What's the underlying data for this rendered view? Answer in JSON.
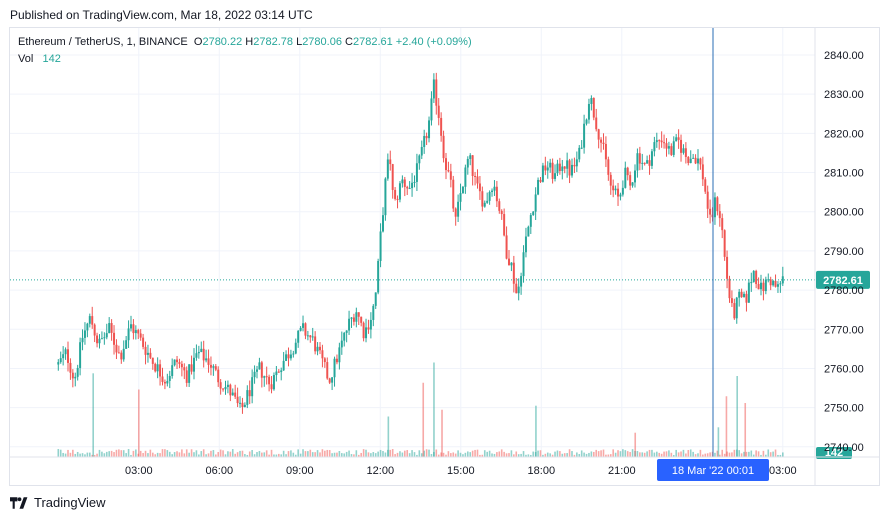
{
  "header": {
    "published": "Published on TradingView.com, Mar 18, 2022 03:14 UTC"
  },
  "legend": {
    "symbol": "Ethereum / TetherUS, 1, BINANCE",
    "o_label": "O",
    "o_value": "2780.22",
    "h_label": "H",
    "h_value": "2782.78",
    "l_label": "L",
    "l_value": "2780.06",
    "c_label": "C",
    "c_value": "2782.61",
    "change": "+2.40 (+0.09%)",
    "vol_label": "Vol",
    "vol_value": "142"
  },
  "colors": {
    "up": "#26a69a",
    "down": "#ef5350",
    "crosshair": "#2962ff",
    "grid": "#f0f3fa",
    "axis_text": "#131722"
  },
  "footer": {
    "brand": "TradingView",
    "logo_icon": "tradingview-logo-icon"
  },
  "chart_data": {
    "type": "candlestick",
    "symbol": "Ethereum / TetherUS",
    "interval": "1",
    "exchange": "BINANCE",
    "y_ticks": [
      "2740.00",
      "2750.00",
      "2760.00",
      "2770.00",
      "2780.00",
      "2790.00",
      "2800.00",
      "2810.00",
      "2820.00",
      "2830.00",
      "2840.00"
    ],
    "x_ticks": [
      "03:00",
      "06:00",
      "09:00",
      "12:00",
      "15:00",
      "18:00",
      "21:00",
      "03:00"
    ],
    "ylim": [
      2736,
      2846
    ],
    "last_price": "2782.61",
    "last_volume": "142",
    "crosshair_label": "18 Mar '22   00:01",
    "grid": true,
    "price_path": [
      [
        0.0,
        2761
      ],
      [
        0.3,
        2764
      ],
      [
        0.6,
        2757
      ],
      [
        0.9,
        2768
      ],
      [
        1.2,
        2773
      ],
      [
        1.5,
        2766
      ],
      [
        1.9,
        2770
      ],
      [
        2.3,
        2763
      ],
      [
        2.7,
        2771
      ],
      [
        3.0,
        2768
      ],
      [
        3.5,
        2762
      ],
      [
        4.0,
        2757
      ],
      [
        4.4,
        2762
      ],
      [
        4.8,
        2758
      ],
      [
        5.2,
        2764
      ],
      [
        5.6,
        2762
      ],
      [
        6.0,
        2757
      ],
      [
        6.4,
        2754
      ],
      [
        6.8,
        2749
      ],
      [
        7.1,
        2754
      ],
      [
        7.5,
        2760
      ],
      [
        7.9,
        2756
      ],
      [
        8.3,
        2761
      ],
      [
        8.7,
        2765
      ],
      [
        9.1,
        2770
      ],
      [
        9.5,
        2767
      ],
      [
        9.8,
        2762
      ],
      [
        10.1,
        2757
      ],
      [
        10.4,
        2763
      ],
      [
        10.8,
        2771
      ],
      [
        11.1,
        2775
      ],
      [
        11.4,
        2769
      ],
      [
        11.7,
        2774
      ],
      [
        11.85,
        2780
      ],
      [
        12.0,
        2793
      ],
      [
        12.2,
        2808
      ],
      [
        12.35,
        2815
      ],
      [
        12.5,
        2801
      ],
      [
        12.8,
        2808
      ],
      [
        13.1,
        2806
      ],
      [
        13.4,
        2811
      ],
      [
        13.8,
        2822
      ],
      [
        14.0,
        2832
      ],
      [
        14.2,
        2824
      ],
      [
        14.4,
        2813
      ],
      [
        14.6,
        2808
      ],
      [
        14.8,
        2797
      ],
      [
        15.0,
        2805
      ],
      [
        15.3,
        2814
      ],
      [
        15.6,
        2806
      ],
      [
        15.9,
        2802
      ],
      [
        16.2,
        2808
      ],
      [
        16.5,
        2799
      ],
      [
        16.7,
        2790
      ],
      [
        16.9,
        2786
      ],
      [
        17.1,
        2778
      ],
      [
        17.3,
        2788
      ],
      [
        17.6,
        2799
      ],
      [
        17.9,
        2808
      ],
      [
        18.2,
        2812
      ],
      [
        18.5,
        2809
      ],
      [
        18.8,
        2813
      ],
      [
        19.1,
        2810
      ],
      [
        19.4,
        2814
      ],
      [
        19.6,
        2822
      ],
      [
        19.8,
        2830
      ],
      [
        20.0,
        2824
      ],
      [
        20.3,
        2816
      ],
      [
        20.6,
        2806
      ],
      [
        20.9,
        2803
      ],
      [
        21.1,
        2810
      ],
      [
        21.3,
        2806
      ],
      [
        21.6,
        2815
      ],
      [
        21.9,
        2811
      ],
      [
        22.2,
        2817
      ],
      [
        22.5,
        2819
      ],
      [
        22.8,
        2815
      ],
      [
        23.1,
        2818
      ],
      [
        23.4,
        2814
      ],
      [
        23.8,
        2814
      ],
      [
        24.0,
        2810
      ],
      [
        24.3,
        2797
      ],
      [
        24.5,
        2803
      ],
      [
        24.7,
        2798
      ],
      [
        24.85,
        2787
      ],
      [
        25.0,
        2779
      ],
      [
        25.15,
        2773
      ],
      [
        25.35,
        2778
      ],
      [
        25.6,
        2777
      ],
      [
        25.9,
        2785
      ],
      [
        26.2,
        2780
      ],
      [
        26.5,
        2783
      ],
      [
        26.8,
        2780
      ],
      [
        27.0,
        2783
      ]
    ],
    "volume_spikes": [
      [
        1.3,
        62
      ],
      [
        3.0,
        50
      ],
      [
        12.3,
        30
      ],
      [
        13.6,
        55
      ],
      [
        14.0,
        70
      ],
      [
        14.3,
        35
      ],
      [
        17.8,
        38
      ],
      [
        24.9,
        45
      ],
      [
        25.3,
        60
      ],
      [
        25.6,
        40
      ],
      [
        24.6,
        22
      ],
      [
        21.5,
        18
      ]
    ]
  }
}
